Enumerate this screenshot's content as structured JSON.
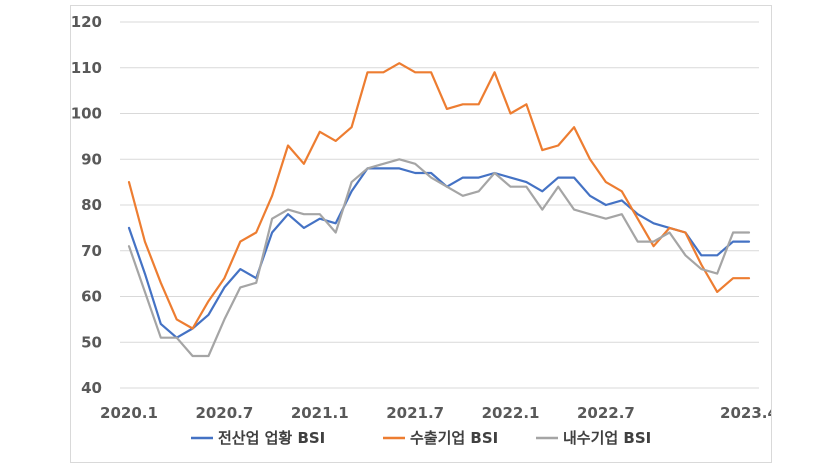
{
  "chart_data": {
    "type": "line",
    "title": "",
    "xlabel": "",
    "ylabel": "",
    "ylim": [
      40,
      120
    ],
    "y_ticks": [
      40,
      50,
      60,
      70,
      80,
      90,
      100,
      110,
      120
    ],
    "x_tick_labels": [
      "2020.1",
      "2020.7",
      "2021.1",
      "2021.7",
      "2022.1",
      "2022.7",
      "2023.4"
    ],
    "x_tick_positions": [
      0,
      6,
      12,
      18,
      24,
      30,
      39
    ],
    "grid": "horizontal",
    "legend_position": "bottom",
    "x": [
      "2020.1",
      "2020.2",
      "2020.3",
      "2020.4",
      "2020.5",
      "2020.6",
      "2020.7",
      "2020.8",
      "2020.9",
      "2020.10",
      "2020.11",
      "2020.12",
      "2021.1",
      "2021.2",
      "2021.3",
      "2021.4",
      "2021.5",
      "2021.6",
      "2021.7",
      "2021.8",
      "2021.9",
      "2021.10",
      "2021.11",
      "2021.12",
      "2022.1",
      "2022.2",
      "2022.3",
      "2022.4",
      "2022.5",
      "2022.6",
      "2022.7",
      "2022.8",
      "2022.9",
      "2022.10",
      "2022.11",
      "2022.12",
      "2023.1",
      "2023.2",
      "2023.3",
      "2023.4"
    ],
    "series": [
      {
        "name": "전산업 업황 BSI",
        "color": "#4472c4",
        "values": [
          75,
          65,
          54,
          51,
          53,
          56,
          62,
          66,
          64,
          74,
          78,
          75,
          77,
          76,
          83,
          88,
          88,
          88,
          87,
          87,
          84,
          86,
          86,
          87,
          86,
          85,
          83,
          86,
          86,
          82,
          80,
          81,
          78,
          76,
          75,
          74,
          69,
          69,
          72,
          72
        ]
      },
      {
        "name": "수출기업 BSI",
        "color": "#ed7d31",
        "values": [
          85,
          72,
          63,
          55,
          53,
          59,
          64,
          72,
          74,
          82,
          93,
          89,
          96,
          94,
          97,
          109,
          109,
          111,
          109,
          109,
          101,
          102,
          102,
          109,
          100,
          102,
          92,
          93,
          97,
          90,
          85,
          83,
          77,
          71,
          75,
          74,
          67,
          61,
          64,
          64
        ]
      },
      {
        "name": "내수기업 BSI",
        "color": "#a5a5a5",
        "values": [
          71,
          61,
          51,
          51,
          47,
          47,
          55,
          62,
          63,
          77,
          79,
          78,
          78,
          74,
          85,
          88,
          89,
          90,
          89,
          86,
          84,
          82,
          83,
          87,
          84,
          84,
          79,
          84,
          79,
          78,
          77,
          78,
          72,
          72,
          74,
          69,
          66,
          65,
          74,
          74
        ]
      }
    ]
  }
}
